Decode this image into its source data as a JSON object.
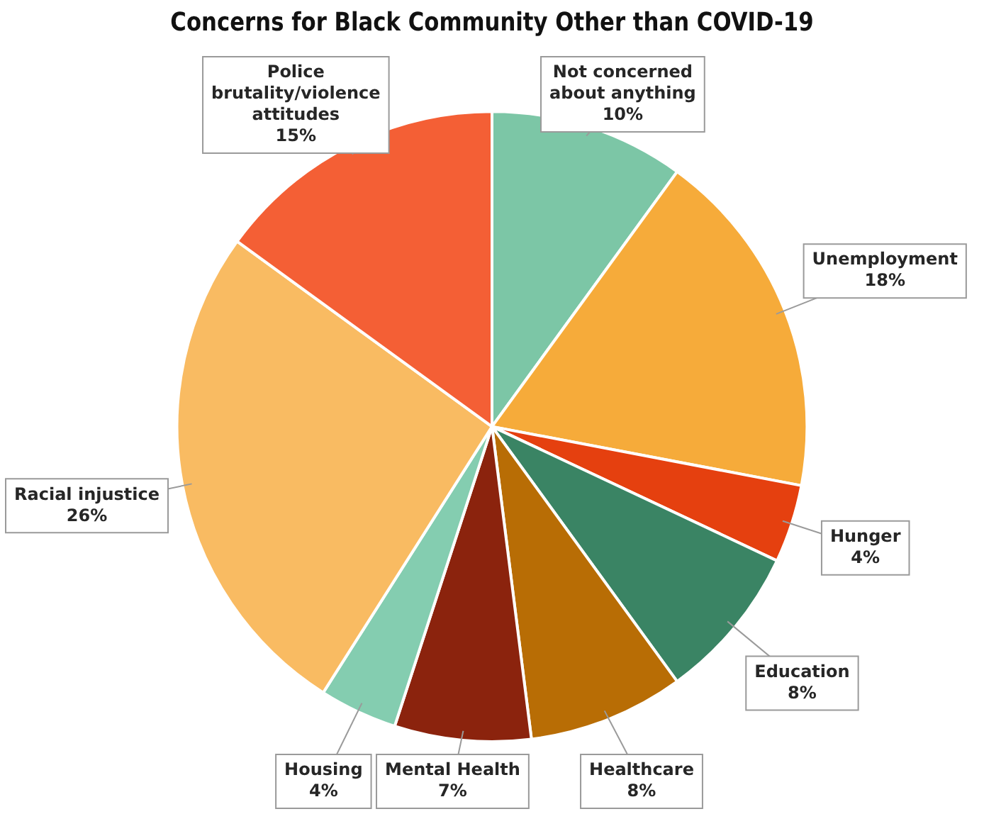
{
  "chart_data": {
    "type": "pie",
    "title": "Concerns for Black Community Other than COVID-19",
    "categories": [
      "Not concerned about anything",
      "Unemployment",
      "Hunger",
      "Education",
      "Healthcare",
      "Mental Health",
      "Housing",
      "Racial injustice",
      "Police brutality/violence attitudes"
    ],
    "values": [
      10,
      18,
      4,
      8,
      8,
      7,
      4,
      26,
      15
    ],
    "value_labels": [
      "10%",
      "18%",
      "4%",
      "8%",
      "8%",
      "7%",
      "4%",
      "26%",
      "15%"
    ],
    "colors": [
      "#7cc6a6",
      "#f6ab3a",
      "#e5400f",
      "#3a8464",
      "#b86d05",
      "#8b230d",
      "#84cdb0",
      "#f9bb62",
      "#f45f35"
    ],
    "legend": false
  }
}
